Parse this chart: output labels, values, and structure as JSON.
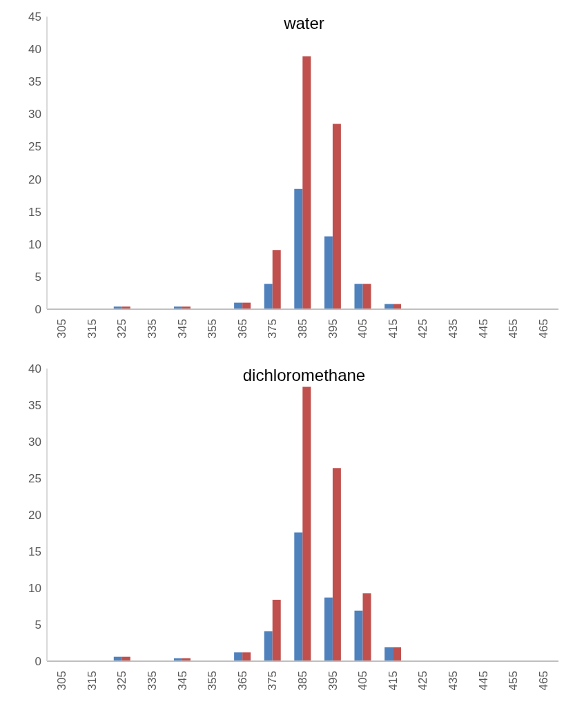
{
  "chart_data": [
    {
      "type": "bar",
      "title": "water",
      "categories": [
        "305",
        "315",
        "325",
        "335",
        "345",
        "355",
        "365",
        "375",
        "385",
        "395",
        "405",
        "415",
        "425",
        "435",
        "445",
        "455",
        "465"
      ],
      "series": [
        {
          "color": "#4f81bd",
          "values": [
            0,
            0,
            0.4,
            0,
            0.4,
            0,
            1.0,
            3.9,
            18.5,
            11.2,
            3.9,
            0.8,
            0,
            0,
            0,
            0,
            0
          ]
        },
        {
          "color": "#c0504d",
          "values": [
            0,
            0,
            0.4,
            0,
            0.4,
            0,
            1.0,
            9.1,
            38.9,
            28.5,
            3.9,
            0.8,
            0,
            0,
            0,
            0,
            0
          ]
        }
      ],
      "ylim": [
        0,
        45
      ],
      "yticks": [
        0,
        5,
        10,
        15,
        20,
        25,
        30,
        35,
        40,
        45
      ],
      "grid": false,
      "legend": false
    },
    {
      "type": "bar",
      "title": "dichloromethane",
      "categories": [
        "305",
        "315",
        "325",
        "335",
        "345",
        "355",
        "365",
        "375",
        "385",
        "395",
        "405",
        "415",
        "425",
        "435",
        "445",
        "455",
        "465"
      ],
      "series": [
        {
          "color": "#4f81bd",
          "values": [
            0,
            0,
            0.6,
            0,
            0.4,
            0,
            1.2,
            4.1,
            17.6,
            8.7,
            6.9,
            1.9,
            0,
            0,
            0,
            0,
            0
          ]
        },
        {
          "color": "#c0504d",
          "values": [
            0,
            0,
            0.6,
            0,
            0.4,
            0,
            1.2,
            8.4,
            37.5,
            26.4,
            9.3,
            1.9,
            0,
            0,
            0,
            0,
            0
          ]
        }
      ],
      "ylim": [
        0,
        40
      ],
      "yticks": [
        0,
        5,
        10,
        15,
        20,
        25,
        30,
        35,
        40
      ],
      "grid": false,
      "legend": false
    }
  ]
}
